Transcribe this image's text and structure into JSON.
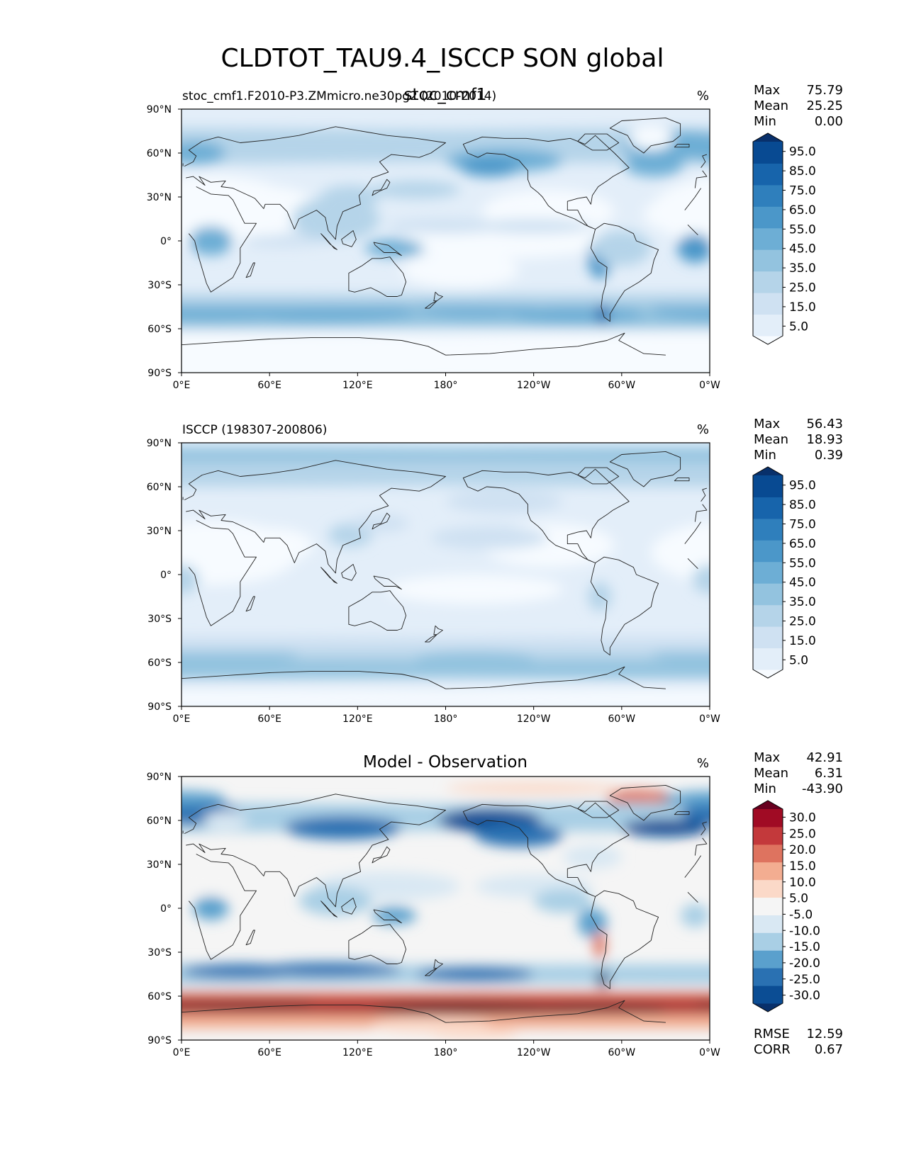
{
  "figure_title": "CLDTOT_TAU9.4_ISCCP SON global",
  "chart_data": [
    {
      "type": "heatmap",
      "left_title": "stoc_cmf1.F2010-P3.ZMmicro.ne30pg2 (2010-2014)",
      "center_title": "stoc_cmf1",
      "units": "%",
      "stats": [
        {
          "label": "Max",
          "value": "75.79"
        },
        {
          "label": "Mean",
          "value": "25.25"
        },
        {
          "label": "Min",
          "value": "0.00"
        }
      ],
      "colorbar": {
        "levels": [
          0,
          5,
          10,
          15,
          20,
          25,
          30,
          35,
          40,
          45,
          50,
          55,
          60,
          65,
          70,
          75,
          80,
          85,
          90,
          95,
          100
        ],
        "tick_labels": [
          "95.0",
          "85.0",
          "75.0",
          "65.0",
          "55.0",
          "45.0",
          "35.0",
          "25.0",
          "15.0",
          "5.0"
        ],
        "colors": [
          "#f7fbff",
          "#e3eef9",
          "#cfe1f2",
          "#b5d4e9",
          "#93c3df",
          "#6daed5",
          "#4b97c9",
          "#2f7fbc",
          "#1764ab",
          "#084a92",
          "#08306b"
        ]
      }
    },
    {
      "type": "heatmap",
      "left_title": "ISCCP (198307-200806)",
      "units": "%",
      "stats": [
        {
          "label": "Max",
          "value": "56.43"
        },
        {
          "label": "Mean",
          "value": "18.93"
        },
        {
          "label": "Min",
          "value": "0.39"
        }
      ],
      "colorbar": {
        "levels": [
          0,
          5,
          10,
          15,
          20,
          25,
          30,
          35,
          40,
          45,
          50,
          55,
          60,
          65,
          70,
          75,
          80,
          85,
          90,
          95,
          100
        ],
        "tick_labels": [
          "95.0",
          "85.0",
          "75.0",
          "65.0",
          "55.0",
          "45.0",
          "35.0",
          "25.0",
          "15.0",
          "5.0"
        ],
        "colors": [
          "#f7fbff",
          "#e3eef9",
          "#cfe1f2",
          "#b5d4e9",
          "#93c3df",
          "#6daed5",
          "#4b97c9",
          "#2f7fbc",
          "#1764ab",
          "#084a92",
          "#08306b"
        ]
      }
    },
    {
      "type": "heatmap",
      "center_title": "Model - Observation",
      "units": "%",
      "stats": [
        {
          "label": "Max",
          "value": "42.91"
        },
        {
          "label": "Mean",
          "value": "6.31"
        },
        {
          "label": "Min",
          "value": "-43.90"
        }
      ],
      "extra_stats": [
        {
          "label": "RMSE",
          "value": "12.59"
        },
        {
          "label": "CORR",
          "value": "0.67"
        }
      ],
      "colorbar": {
        "levels": [
          -30,
          -25,
          -20,
          -15,
          -10,
          -5,
          5,
          10,
          15,
          20,
          25,
          30
        ],
        "tick_labels": [
          "30.0",
          "25.0",
          "20.0",
          "15.0",
          "10.0",
          "5.0",
          "-5.0",
          "-10.0",
          "-15.0",
          "-20.0",
          "-25.0",
          "-30.0"
        ],
        "colors": [
          "#08306b",
          "#0b4d94",
          "#2a71b2",
          "#5aa0cd",
          "#a9cfe5",
          "#d9e8f3",
          "#f5f5f5",
          "#fbd9c8",
          "#f3ad91",
          "#de735f",
          "#c3393b",
          "#a00b24",
          "#67001f"
        ]
      }
    }
  ],
  "map_axes": {
    "y_ticks": [
      "90°N",
      "60°N",
      "30°N",
      "0°",
      "30°S",
      "60°S",
      "90°S"
    ],
    "x_ticks": [
      "0°E",
      "60°E",
      "120°E",
      "180°",
      "120°W",
      "60°W",
      "0°W"
    ]
  }
}
